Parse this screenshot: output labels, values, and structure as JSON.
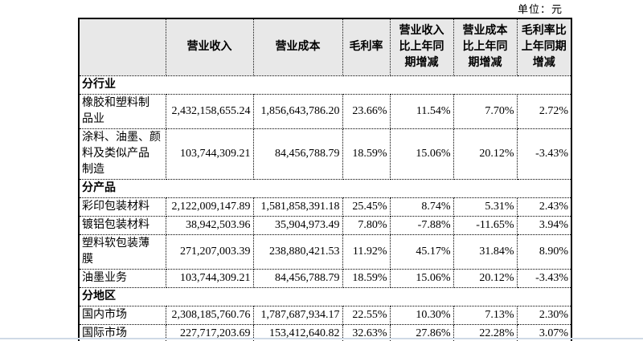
{
  "page": {
    "unit_label": "单位：元"
  },
  "colors": {
    "header_bg": "#e8e8e8",
    "border": "#000000",
    "bottom_rule": "#cfdae6"
  },
  "table": {
    "columns": [
      {
        "key": "label",
        "header": ""
      },
      {
        "key": "revenue",
        "header": "营业收入"
      },
      {
        "key": "cost",
        "header": "营业成本"
      },
      {
        "key": "margin",
        "header": "毛利率"
      },
      {
        "key": "revenue-yoy",
        "header": "营业收入\n比上年同\n期增减"
      },
      {
        "key": "cost-yoy",
        "header": "营业成本\n比上年同\n期增减"
      },
      {
        "key": "margin-yoy",
        "header": "毛利率比\n上年同期\n增减"
      }
    ],
    "sections": [
      {
        "title": "分行业",
        "rows": [
          {
            "label": "橡胶和塑料制\n品业",
            "values": [
              "2,432,158,655.24",
              "1,856,643,786.20",
              "23.66%",
              "11.54%",
              "7.70%",
              "2.72%"
            ]
          },
          {
            "label": "涂料、油墨、颜\n料及类似产品\n制造",
            "values": [
              "103,744,309.21",
              "84,456,788.79",
              "18.59%",
              "15.06%",
              "20.12%",
              "-3.43%"
            ]
          }
        ]
      },
      {
        "title": "分产品",
        "rows": [
          {
            "label": "彩印包装材料",
            "values": [
              "2,122,009,147.89",
              "1,581,858,391.18",
              "25.45%",
              "8.74%",
              "5.31%",
              "2.43%"
            ]
          },
          {
            "label": "镀铝包装材料",
            "values": [
              "38,942,503.96",
              "35,904,973.49",
              "7.80%",
              "-7.88%",
              "-11.65%",
              "3.94%"
            ]
          },
          {
            "label": "塑料软包装薄\n膜",
            "values": [
              "271,207,003.39",
              "238,880,421.53",
              "11.92%",
              "45.17%",
              "31.84%",
              "8.90%"
            ]
          },
          {
            "label": "油墨业务",
            "values": [
              "103,744,309.21",
              "84,456,788.79",
              "18.59%",
              "15.06%",
              "20.12%",
              "-3.43%"
            ]
          }
        ]
      },
      {
        "title": "分地区",
        "rows": [
          {
            "label": "国内市场",
            "values": [
              "2,308,185,760.76",
              "1,787,687,934.17",
              "22.55%",
              "10.30%",
              "7.13%",
              "2.30%"
            ]
          },
          {
            "label": "国际市场",
            "values": [
              "227,717,203.69",
              "153,412,640.82",
              "32.63%",
              "27.86%",
              "22.28%",
              "3.07%"
            ]
          }
        ]
      }
    ]
  }
}
